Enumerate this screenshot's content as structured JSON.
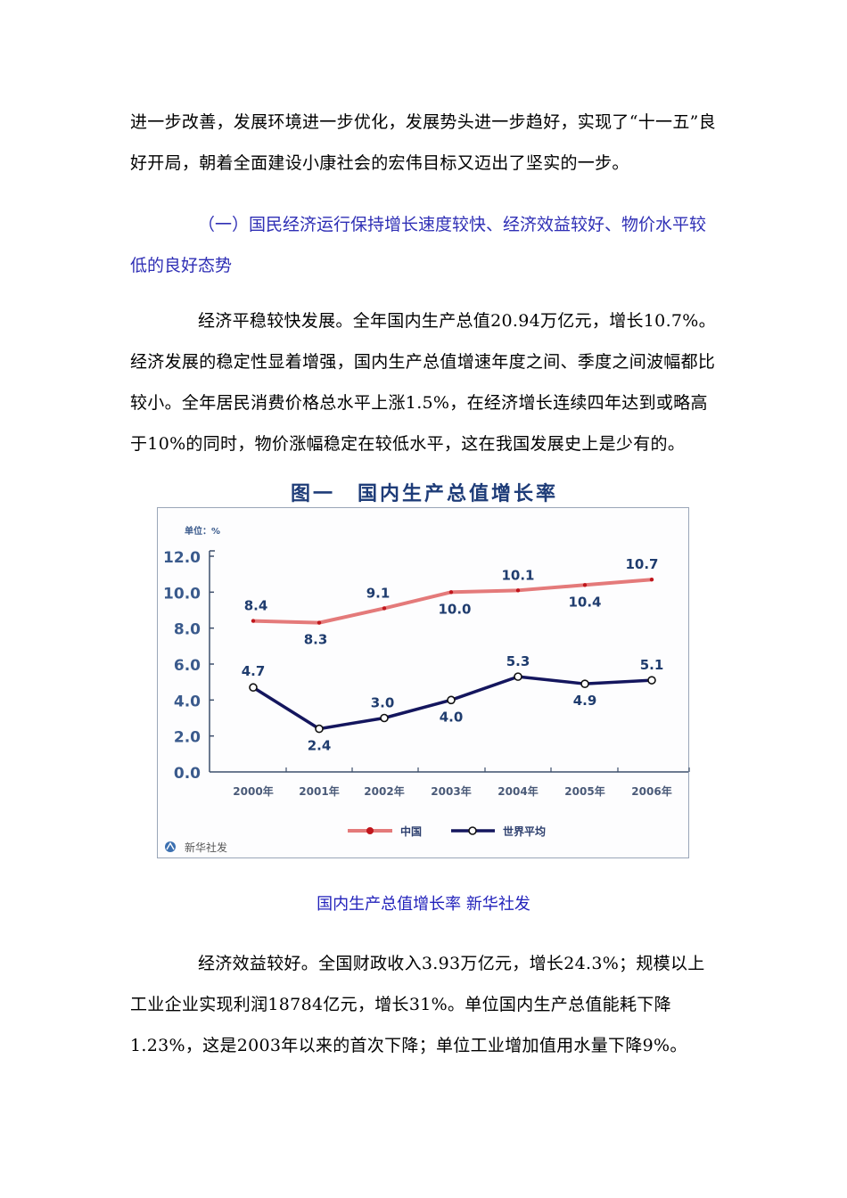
{
  "document": {
    "para1": "进一步改善，发展环境进一步优化，发展势头进一步趋好，实现了“十一五”良好开局，朝着全面建设小康社会的宏伟目标又迈出了坚实的一步。",
    "heading1": "（一）国民经济运行保持增长速度较快、经济效益较好、物价水平较低的良好态势",
    "para2": "经济平稳较快发展。全年国内生产总值20.94万亿元，增长10.7%。经济发展的稳定性显着增强，国内生产总值增速年度之间、季度之间波幅都比较小。全年居民消费价格总水平上涨1.5%，在经济增长连续四年达到或略高于10%的同时，物价涨幅稳定在较低水平，这在我国发展史上是少有的。",
    "caption": "国内生产总值增长率 新华社发",
    "para3": "经济效益较好。全国财政收入3.93万亿元，增长24.3%；规模以上工业企业实现利润18784亿元，增长31%。单位国内生产总值能耗下降1.23%，这是2003年以来的首次下降；单位工业增加值用水量下降9%。"
  },
  "chart": {
    "title": "图一　国内生产总值增长率",
    "unit_label": "单位：%",
    "source_label": "新华社发",
    "source_icon": "xinhua-logo-icon",
    "legend": {
      "china": "中国",
      "world": "世界平均"
    }
  },
  "chart_data": {
    "type": "line",
    "title": "图一　国内生产总值增长率",
    "xlabel": "",
    "ylabel": "单位：%",
    "categories": [
      "2000年",
      "2001年",
      "2002年",
      "2003年",
      "2004年",
      "2005年",
      "2006年"
    ],
    "series": [
      {
        "name": "中国",
        "color": "#e47a7a",
        "marker_color": "#c0161c",
        "values": [
          8.4,
          8.3,
          9.1,
          10.0,
          10.1,
          10.4,
          10.7
        ]
      },
      {
        "name": "世界平均",
        "color": "#14165e",
        "marker": "hollow-circle",
        "values": [
          4.7,
          2.4,
          3.0,
          4.0,
          5.3,
          4.9,
          5.1
        ]
      }
    ],
    "yticks": [
      "0.0",
      "2.0",
      "4.0",
      "6.0",
      "8.0",
      "10.0",
      "12.0"
    ],
    "ylim": [
      0,
      12
    ],
    "grid": false,
    "legend_position": "bottom",
    "source": "新华社发"
  }
}
